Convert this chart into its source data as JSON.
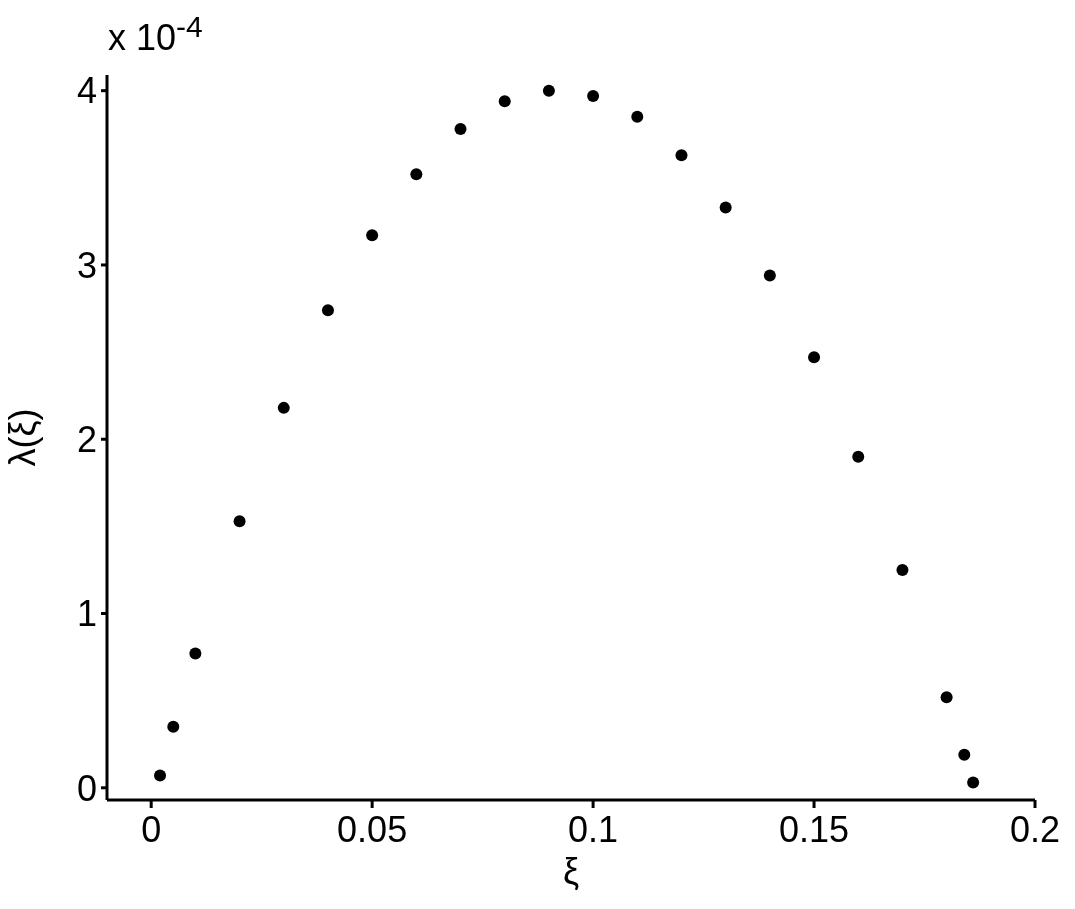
{
  "chart_data": {
    "type": "scatter",
    "xlabel": "ξ",
    "ylabel": "λ(ξ)",
    "annotations": [
      "x 10$^{-4}$"
    ],
    "x": [
      0.002,
      0.005,
      0.01,
      0.02,
      0.03,
      0.04,
      0.05,
      0.06,
      0.07,
      0.08,
      0.09,
      0.1,
      0.11,
      0.12,
      0.13,
      0.14,
      0.15,
      0.16,
      0.17,
      0.18,
      0.184,
      0.186
    ],
    "series": [
      {
        "color": "#000000",
        "values": [
          0.07,
          0.35,
          0.77,
          1.53,
          2.18,
          2.74,
          3.17,
          3.52,
          3.78,
          3.94,
          4.0,
          3.97,
          3.85,
          3.63,
          3.33,
          2.94,
          2.47,
          1.9,
          1.25,
          0.52,
          0.19,
          0.03
        ]
      }
    ],
    "xlim": [
      -0.01,
      0.2
    ],
    "xticks": [
      0,
      0.05,
      0.1,
      0.15,
      0.2
    ],
    "ylim": [
      -0.07,
      4.09
    ],
    "yticks": [
      0,
      1,
      2,
      3,
      4
    ],
    "marker": "circle",
    "grid": false,
    "legend": false
  }
}
